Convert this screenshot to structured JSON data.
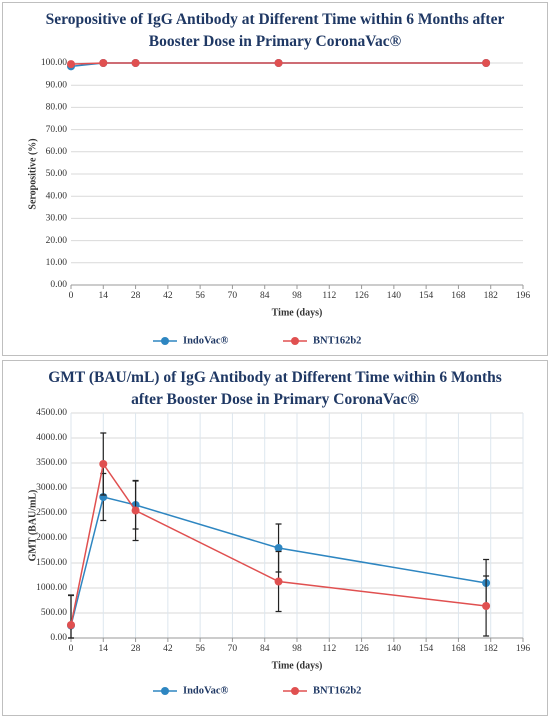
{
  "chart_data": [
    {
      "type": "line",
      "title": "Seropositive of IgG Antibody at Different Time within 6 Months after Booster Dose in Primary CoronaVac®",
      "x_label": "Time (days)",
      "y_label": "Seropositive (%)",
      "x": [
        0,
        14,
        28,
        90,
        180
      ],
      "series": [
        {
          "name": "IndoVac®",
          "color": "#2e86c1",
          "values": [
            98.5,
            100,
            100,
            100,
            100
          ]
        },
        {
          "name": "BNT162b2",
          "color": "#e05050",
          "values": [
            99.5,
            100,
            100,
            100,
            100
          ]
        }
      ],
      "xlim": [
        0,
        196
      ],
      "xticks": [
        0,
        14,
        28,
        42,
        56,
        70,
        84,
        98,
        112,
        126,
        140,
        154,
        168,
        182,
        196
      ],
      "ylim": [
        0,
        100
      ],
      "yticks": [
        {
          "value": 0,
          "label": "0.00"
        },
        {
          "value": 10,
          "label": "10.00"
        },
        {
          "value": 20,
          "label": "20.00"
        },
        {
          "value": 30,
          "label": "30.00"
        },
        {
          "value": 40,
          "label": "40.00"
        },
        {
          "value": 50,
          "label": "50.00"
        },
        {
          "value": 60,
          "label": "60.00"
        },
        {
          "value": 70,
          "label": "70.00"
        },
        {
          "value": 80,
          "label": "80.00"
        },
        {
          "value": 90,
          "label": "90.00"
        },
        {
          "value": 100,
          "label": "100.00"
        }
      ],
      "grid": "y"
    },
    {
      "type": "line",
      "title": "GMT (BAU/mL) of IgG Antibody at Different Time within 6 Months after Booster Dose in Primary CoronaVac®",
      "x_label": "Time (days)",
      "y_label": "GMT (BAU/mL)",
      "x": [
        0,
        14,
        28,
        90,
        180
      ],
      "series": [
        {
          "name": "IndoVac®",
          "color": "#2e86c1",
          "values": [
            250,
            2820,
            2660,
            1800,
            1100
          ],
          "errors": [
            600,
            470,
            480,
            480,
            470
          ]
        },
        {
          "name": "BNT162b2",
          "color": "#e05050",
          "values": [
            260,
            3480,
            2550,
            1130,
            640
          ],
          "errors": [
            600,
            620,
            600,
            600,
            600
          ]
        }
      ],
      "xlim": [
        0,
        196
      ],
      "xticks": [
        0,
        14,
        28,
        42,
        56,
        70,
        84,
        98,
        112,
        126,
        140,
        154,
        168,
        182,
        196
      ],
      "ylim": [
        0,
        4500
      ],
      "yticks": [
        {
          "value": 0,
          "label": "0.00"
        },
        {
          "value": 500,
          "label": "500.00"
        },
        {
          "value": 1000,
          "label": "1000.00"
        },
        {
          "value": 1500,
          "label": "1500.00"
        },
        {
          "value": 2000,
          "label": "2000.00"
        },
        {
          "value": 2500,
          "label": "2500.00"
        },
        {
          "value": 3000,
          "label": "3000.00"
        },
        {
          "value": 3500,
          "label": "3500.00"
        },
        {
          "value": 4000,
          "label": "4000.00"
        },
        {
          "value": 4500,
          "label": "4500.00"
        }
      ],
      "grid": "both"
    }
  ]
}
